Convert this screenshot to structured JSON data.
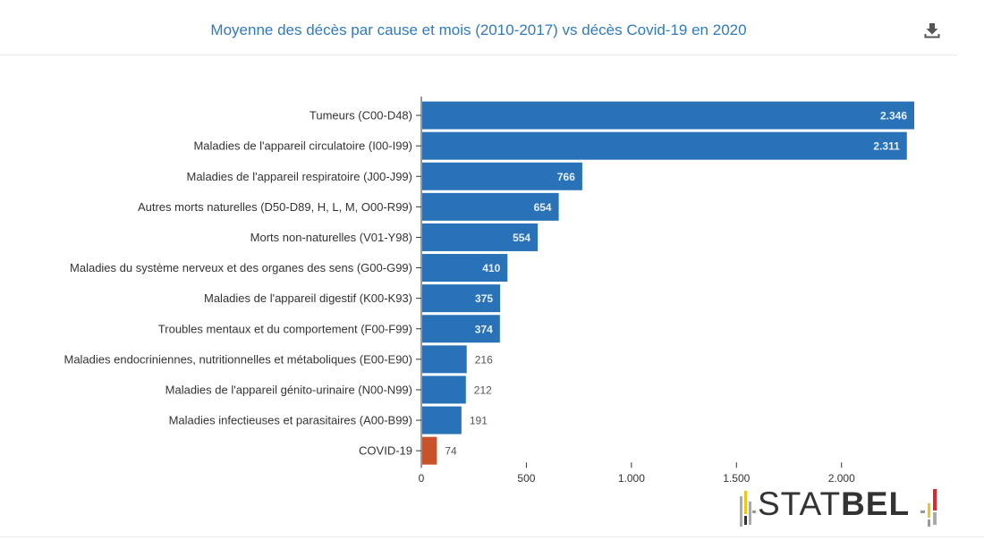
{
  "header": {
    "title": "Moyenne des décès par cause et mois (2010-2017) vs décès Covid-19 en 2020"
  },
  "icons": {
    "download": "download-icon"
  },
  "colors": {
    "bar": "#2a72b8",
    "highlight": "#c8522a",
    "title": "#2f7bbf"
  },
  "logo": {
    "text_light": "STAT",
    "text_bold": "BEL"
  },
  "chart_data": {
    "type": "bar",
    "orientation": "horizontal",
    "title": "Moyenne des décès par cause et mois (2010-2017) vs décès Covid-19 en 2020",
    "categories": [
      "Tumeurs (C00-D48)",
      "Maladies de l'appareil circulatoire (I00-I99)",
      "Maladies de l'appareil respiratoire (J00-J99)",
      "Autres morts naturelles (D50-D89, H, L, M, O00-R99)",
      "Morts non-naturelles (V01-Y98)",
      "Maladies du système nerveux et des organes des sens (G00-G99)",
      "Maladies de l'appareil digestif (K00-K93)",
      "Troubles mentaux et du comportement (F00-F99)",
      "Maladies endocriniennes, nutritionnelles et métaboliques (E00-E90)",
      "Maladies de l'appareil génito-urinaire (N00-N99)",
      "Maladies infectieuses et parasitaires (A00-B99)",
      "COVID-19"
    ],
    "values": [
      2346,
      2311,
      766,
      654,
      554,
      410,
      375,
      374,
      216,
      212,
      191,
      74
    ],
    "value_labels": [
      "2.346",
      "2.311",
      "766",
      "654",
      "554",
      "410",
      "375",
      "374",
      "216",
      "212",
      "191",
      "74"
    ],
    "highlight_category": "COVID-19",
    "xticks": [
      0,
      500,
      1000,
      1500,
      2000
    ],
    "xtick_labels": [
      "0",
      "500",
      "1.000",
      "1.500",
      "2.000"
    ],
    "xlim": [
      0,
      2346
    ],
    "xlabel": "",
    "ylabel": "",
    "grid": false,
    "legend": "none"
  }
}
